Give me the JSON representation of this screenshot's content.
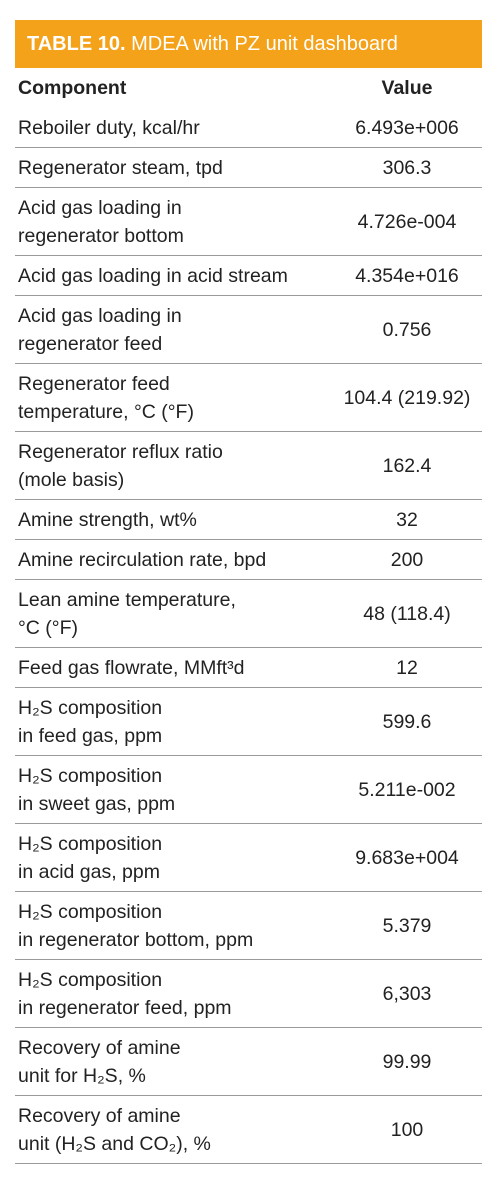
{
  "header": {
    "label": "TABLE 10.",
    "title": "MDEA with PZ unit dashboard"
  },
  "table": {
    "columns": [
      "Component",
      "Value"
    ],
    "rows": [
      [
        [
          "Reboiler duty, kcal/hr"
        ],
        "6.493e+006"
      ],
      [
        [
          "Regenerator steam, tpd"
        ],
        "306.3"
      ],
      [
        [
          "Acid gas loading in",
          "regenerator bottom"
        ],
        "4.726e-004"
      ],
      [
        [
          "Acid gas loading in acid stream"
        ],
        "4.354e+016"
      ],
      [
        [
          "Acid gas loading in",
          "regenerator feed"
        ],
        "0.756"
      ],
      [
        [
          "Regenerator feed",
          "temperature, °C (°F)"
        ],
        "104.4 (219.92)"
      ],
      [
        [
          "Regenerator reflux ratio",
          "(mole basis)"
        ],
        "162.4"
      ],
      [
        [
          "Amine strength, wt%"
        ],
        "32"
      ],
      [
        [
          "Amine recirculation rate, bpd"
        ],
        "200"
      ],
      [
        [
          "Lean amine temperature,",
          "°C (°F)"
        ],
        "48 (118.4)"
      ],
      [
        [
          "Feed gas flowrate, MMft³d"
        ],
        "12"
      ],
      [
        [
          "H₂S composition",
          "in feed gas, ppm"
        ],
        "599.6"
      ],
      [
        [
          "H₂S composition",
          "in sweet gas, ppm"
        ],
        "5.211e-002"
      ],
      [
        [
          "H₂S composition",
          "in acid gas, ppm"
        ],
        "9.683e+004"
      ],
      [
        [
          "H₂S composition",
          "in regenerator bottom, ppm"
        ],
        "5.379"
      ],
      [
        [
          "H₂S composition",
          "in regenerator feed, ppm"
        ],
        "6,303"
      ],
      [
        [
          "Recovery of amine",
          "unit for H₂S, %"
        ],
        "99.99"
      ],
      [
        [
          "Recovery of amine",
          "unit (H₂S and CO₂), %"
        ],
        "100"
      ]
    ]
  }
}
